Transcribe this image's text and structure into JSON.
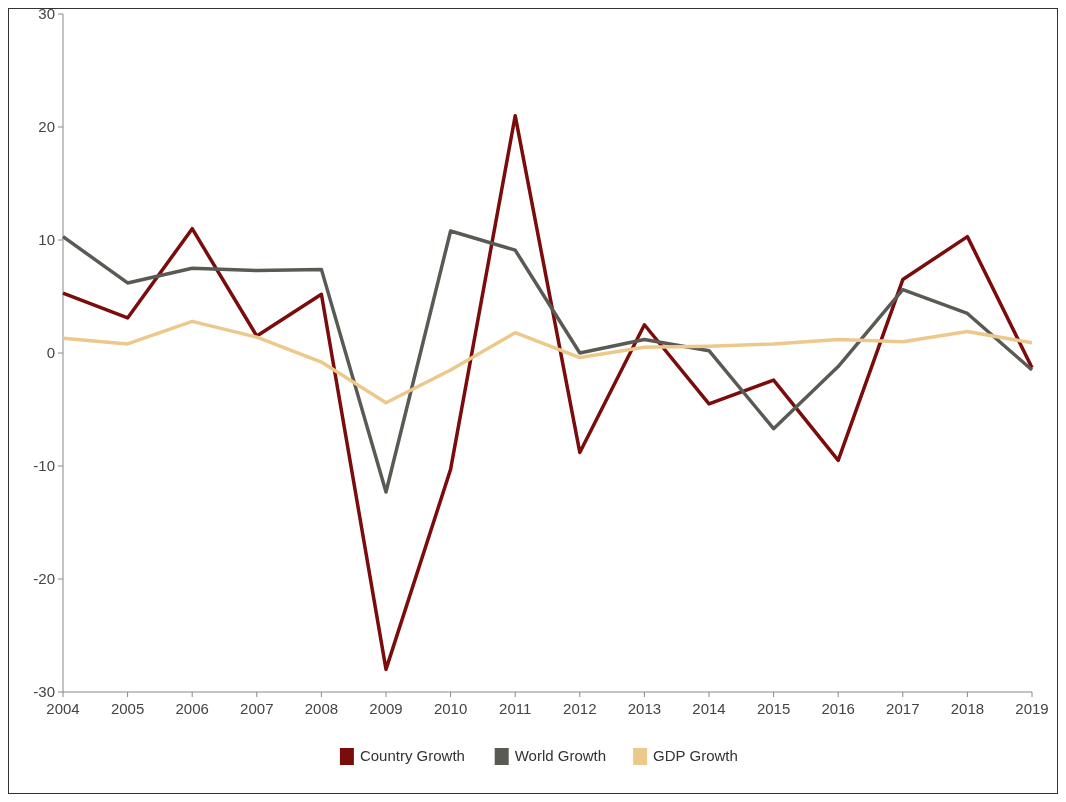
{
  "chart_data": {
    "type": "line",
    "x": [
      2004,
      2005,
      2006,
      2007,
      2008,
      2009,
      2010,
      2011,
      2012,
      2013,
      2014,
      2015,
      2016,
      2017,
      2018,
      2019
    ],
    "xlim": [
      2004,
      2019
    ],
    "xticks": [
      2004,
      2005,
      2006,
      2007,
      2008,
      2009,
      2010,
      2011,
      2012,
      2013,
      2014,
      2015,
      2016,
      2017,
      2018,
      2019
    ],
    "ylim": [
      -30,
      30
    ],
    "yticks": [
      -30,
      -20,
      -10,
      0,
      10,
      20,
      30
    ],
    "grid": false,
    "legend": "bottom",
    "marker": "none",
    "line_style": "solid",
    "series": [
      {
        "name": "Country Growth",
        "color": "#7a0c0c",
        "values": [
          5.3,
          3.1,
          11,
          1.5,
          5.2,
          -28,
          -10.3,
          21,
          -8.8,
          2.5,
          -4.5,
          -2.4,
          -9.5,
          6.5,
          10.3,
          -1.3
        ]
      },
      {
        "name": "World Growth",
        "color": "#5a5a55",
        "values": [
          10.3,
          6.2,
          7.5,
          7.3,
          7.4,
          -12.3,
          10.8,
          9.1,
          0,
          1.2,
          0.2,
          -6.7,
          -1.2,
          5.6,
          3.5,
          -1.5
        ]
      },
      {
        "name": "GDP Growth",
        "color": "#ecc98a",
        "values": [
          1.3,
          0.8,
          2.8,
          1.4,
          -0.8,
          -4.4,
          -1.5,
          1.8,
          -0.4,
          0.5,
          0.6,
          0.8,
          1.2,
          1.0,
          1.9,
          0.9
        ]
      }
    ]
  }
}
